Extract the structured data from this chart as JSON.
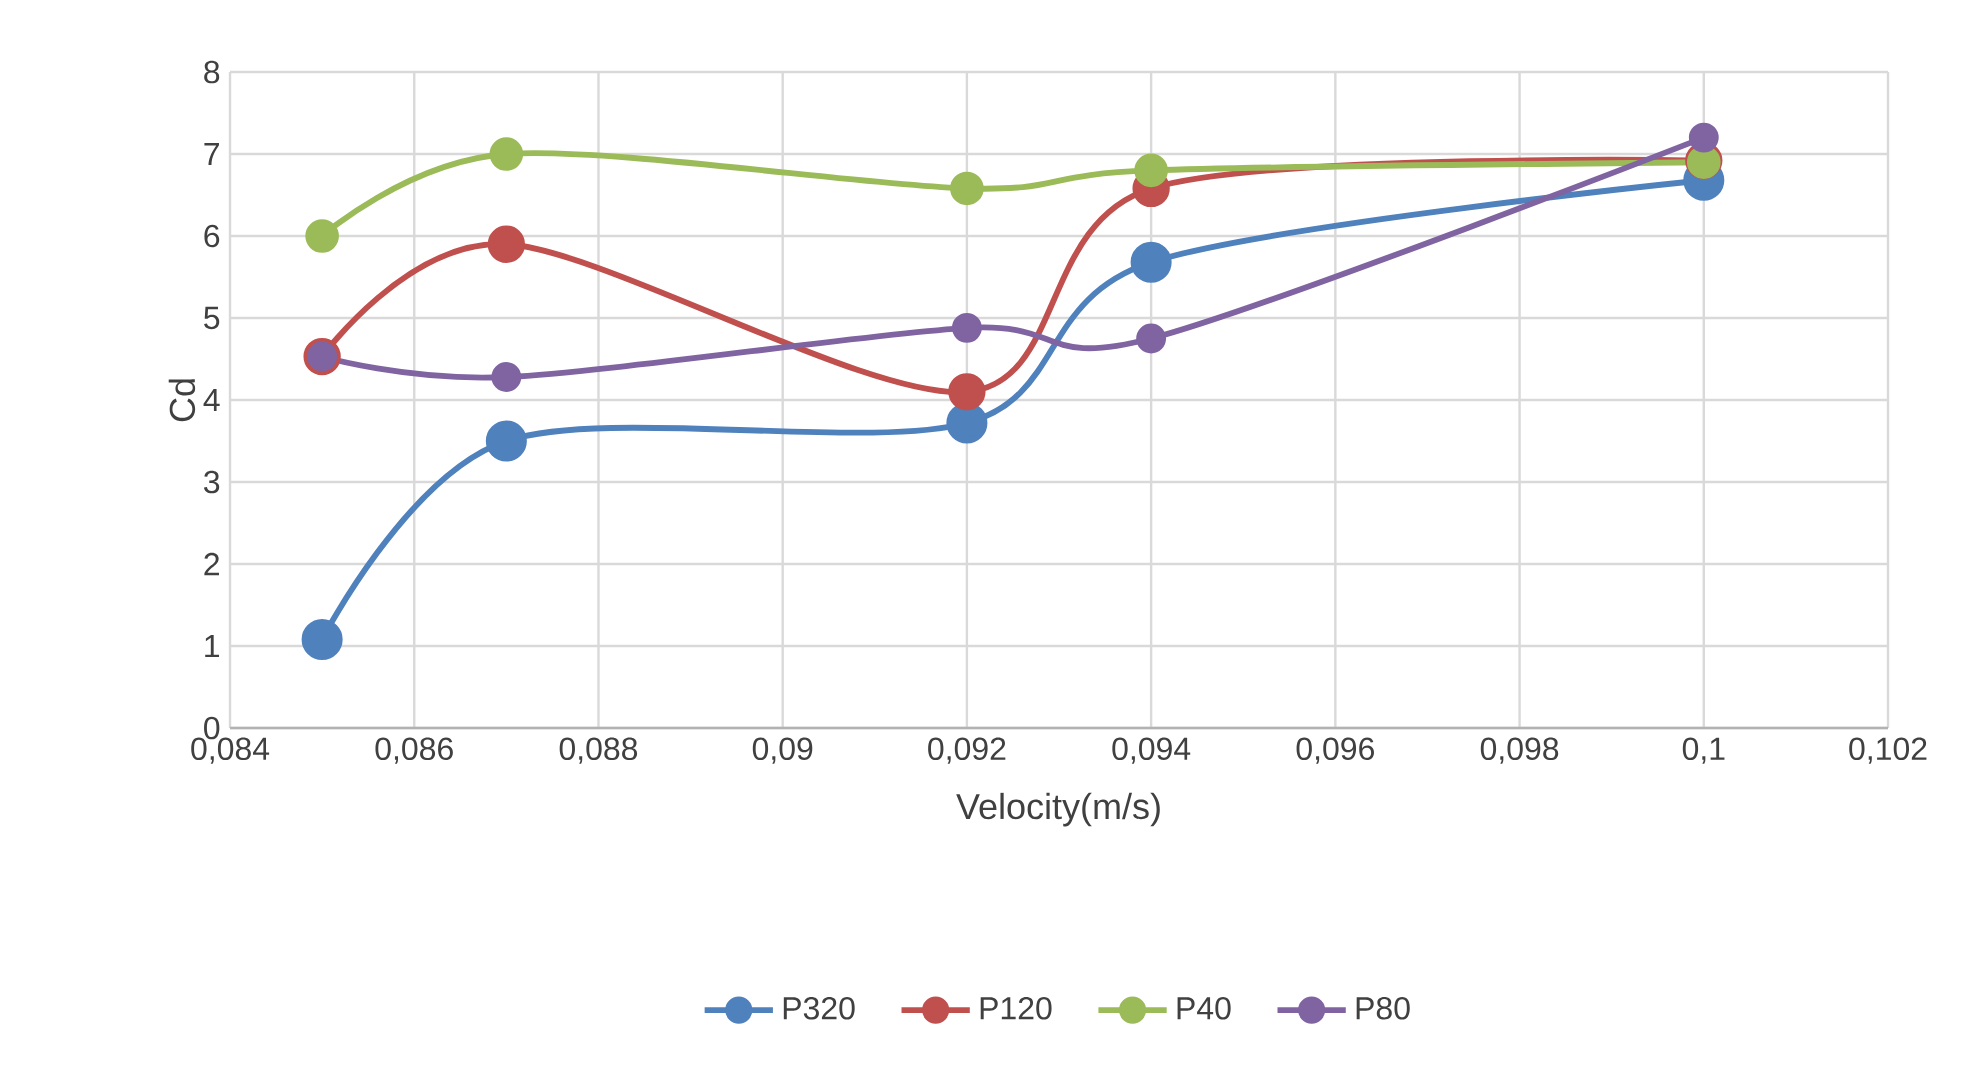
{
  "chart_data": {
    "type": "line",
    "xlabel": "Velocity(m/s)",
    "ylabel": "Cd",
    "x": [
      0.085,
      0.087,
      0.092,
      0.094,
      0.1
    ],
    "series": [
      {
        "name": "P320",
        "color": "#4f81bd",
        "values": [
          1.08,
          3.5,
          3.72,
          5.68,
          6.68
        ]
      },
      {
        "name": "P120",
        "color": "#c0504d",
        "values": [
          4.53,
          5.9,
          4.1,
          6.58,
          6.92
        ]
      },
      {
        "name": "P40",
        "color": "#9bbb59",
        "values": [
          6.0,
          7.0,
          6.58,
          6.8,
          6.9
        ]
      },
      {
        "name": "P80",
        "color": "#8064a2",
        "values": [
          4.53,
          4.28,
          4.88,
          4.75,
          7.2
        ]
      }
    ],
    "xlim": [
      0.084,
      0.102
    ],
    "xticks": [
      {
        "value": 0.084,
        "label": "0,084"
      },
      {
        "value": 0.086,
        "label": "0,086"
      },
      {
        "value": 0.088,
        "label": "0,088"
      },
      {
        "value": 0.09,
        "label": "0,09"
      },
      {
        "value": 0.092,
        "label": "0,092"
      },
      {
        "value": 0.094,
        "label": "0,094"
      },
      {
        "value": 0.096,
        "label": "0,096"
      },
      {
        "value": 0.098,
        "label": "0,098"
      },
      {
        "value": 0.1,
        "label": "0,1"
      },
      {
        "value": 0.102,
        "label": "0,102"
      }
    ],
    "ylim": [
      0,
      8
    ],
    "yticks": [
      0,
      1,
      2,
      3,
      4,
      5,
      6,
      7,
      8
    ],
    "grid": true,
    "legend": "bottom",
    "marker": "circle",
    "line_style": "solid"
  }
}
